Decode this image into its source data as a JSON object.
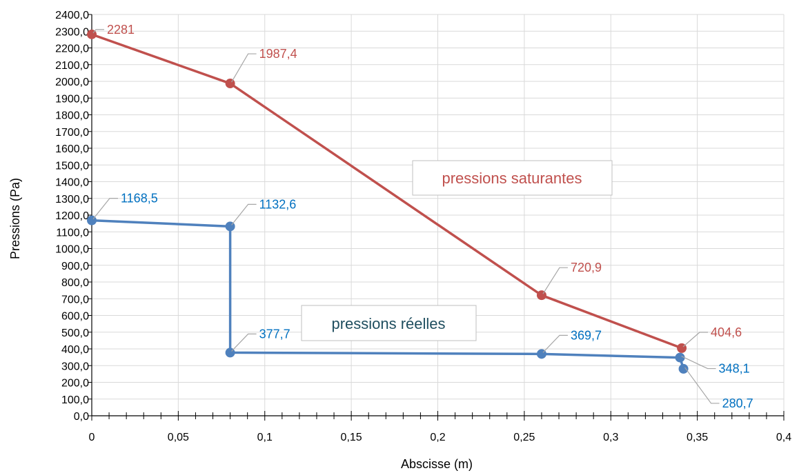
{
  "chart_data": {
    "type": "line",
    "xlabel": "Abscisse (m)",
    "ylabel": "Pressions (Pa)",
    "xlim": [
      0,
      0.4
    ],
    "ylim": [
      0,
      2400
    ],
    "x_ticks": [
      0,
      0.05,
      0.1,
      0.15,
      0.2,
      0.25,
      0.3,
      0.35,
      0.4
    ],
    "x_tick_labels": [
      "0",
      "0,05",
      "0,1",
      "0,15",
      "0,2",
      "0,25",
      "0,3",
      "0,35",
      "0,4"
    ],
    "y_ticks": [
      0,
      100,
      200,
      300,
      400,
      500,
      600,
      700,
      800,
      900,
      1000,
      1100,
      1200,
      1300,
      1400,
      1500,
      1600,
      1700,
      1800,
      1900,
      2000,
      2100,
      2200,
      2300,
      2400
    ],
    "y_tick_labels": [
      "0,0",
      "100,0",
      "200,0",
      "300,0",
      "400,0",
      "500,0",
      "600,0",
      "700,0",
      "800,0",
      "900,0",
      "1000,0",
      "1100,0",
      "1200,0",
      "1300,0",
      "1400,0",
      "1500,0",
      "1600,0",
      "1700,0",
      "1800,0",
      "1900,0",
      "2000,0",
      "2100,0",
      "2200,0",
      "2300,0",
      "2400,0"
    ],
    "grid": true,
    "series": [
      {
        "name": "pressions saturantes",
        "color": "#c0504d",
        "label_color": "#c0504d",
        "x": [
          0,
          0.08,
          0.26,
          0.341
        ],
        "y": [
          2281,
          1987.4,
          720.9,
          404.6
        ],
        "labels": [
          "2281",
          "1987,4",
          "720,9",
          "404,6"
        ]
      },
      {
        "name": "pressions réelles",
        "color": "#4f81bd",
        "label_color": "#0070c0",
        "x": [
          0,
          0.08,
          0.08,
          0.26,
          0.34,
          0.342
        ],
        "y": [
          1168.5,
          1132.6,
          377.7,
          369.7,
          348.1,
          280.7
        ],
        "labels": [
          "1168,5",
          "1132,6",
          "377,7",
          "369,7",
          "348,1",
          "280,7"
        ]
      }
    ],
    "annotations": [
      {
        "text": "pressions saturantes",
        "color": "#c0504d"
      },
      {
        "text": "pressions réelles",
        "color": "#1f4e5f"
      }
    ]
  }
}
